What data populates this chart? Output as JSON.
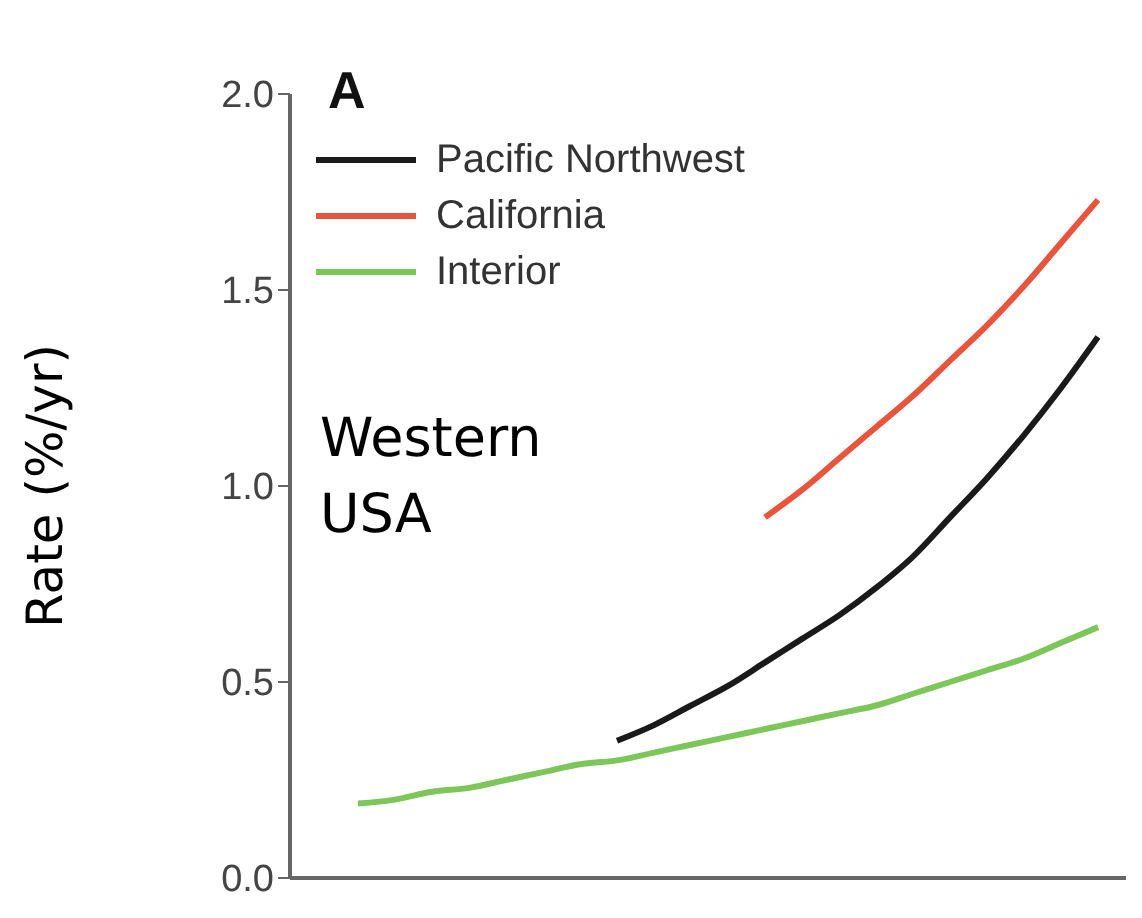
{
  "chart_data": {
    "type": "line",
    "ylabel": "Rate (%/yr)",
    "annotations": [
      "A",
      "Western USA"
    ],
    "categories": [
      null,
      null,
      null,
      null,
      null,
      null,
      null,
      null,
      null,
      null,
      null,
      null,
      null,
      null,
      null,
      null,
      null,
      null,
      null,
      null,
      null
    ],
    "series": [
      {
        "name": "Pacific Northwest",
        "color": "#1a1a1a",
        "values": [
          null,
          null,
          null,
          null,
          null,
          null,
          null,
          0.35,
          0.39,
          0.44,
          0.49,
          0.55,
          0.61,
          0.67,
          0.74,
          0.82,
          0.92,
          1.02,
          1.13,
          1.25,
          1.38
        ]
      },
      {
        "name": "California",
        "color": "#e8553d",
        "values": [
          null,
          null,
          null,
          null,
          null,
          null,
          null,
          null,
          null,
          null,
          null,
          0.92,
          0.99,
          1.07,
          1.15,
          1.23,
          1.32,
          1.41,
          1.51,
          1.62,
          1.73
        ]
      },
      {
        "name": "Interior",
        "color": "#7dc65a",
        "values": [
          0.19,
          0.2,
          0.22,
          0.23,
          0.25,
          0.27,
          0.29,
          0.3,
          0.32,
          0.34,
          0.36,
          0.38,
          0.4,
          0.42,
          0.44,
          0.47,
          0.5,
          0.53,
          0.56,
          0.6,
          0.64
        ]
      }
    ],
    "ylim": [
      0,
      2
    ],
    "yticks": [
      {
        "value": 0,
        "label": "0.0"
      },
      {
        "value": 0.5,
        "label": "0.5"
      },
      {
        "value": 1,
        "label": "1.0"
      },
      {
        "value": 1.5,
        "label": "1.5"
      },
      {
        "value": 2,
        "label": "2.0"
      }
    ],
    "grid": false,
    "legend": "top left",
    "marker": "none",
    "line_style": "solid"
  }
}
